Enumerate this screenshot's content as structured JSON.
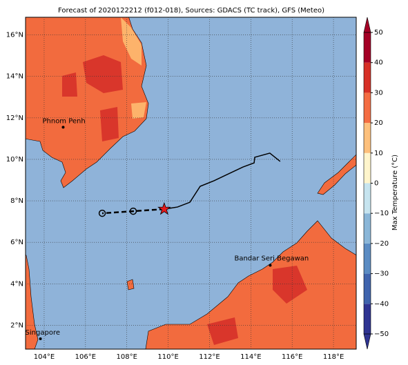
{
  "chart_data": {
    "type": "map",
    "title": "Forecast of 2020122212 (f012-018), Sources: GDACS (TC track), GFS (Meteo)",
    "xlim": [
      103.1,
      119.1
    ],
    "ylim": [
      0.85,
      16.85
    ],
    "xticks": [
      {
        "value": 104,
        "label": "104°E"
      },
      {
        "value": 106,
        "label": "106°E"
      },
      {
        "value": 108,
        "label": "108°E"
      },
      {
        "value": 110,
        "label": "110°E"
      },
      {
        "value": 112,
        "label": "112°E"
      },
      {
        "value": 114,
        "label": "114°E"
      },
      {
        "value": 116,
        "label": "116°E"
      },
      {
        "value": 118,
        "label": "118°E"
      }
    ],
    "yticks": [
      {
        "value": 2,
        "label": "2°N"
      },
      {
        "value": 4,
        "label": "4°N"
      },
      {
        "value": 6,
        "label": "6°N"
      },
      {
        "value": 8,
        "label": "8°N"
      },
      {
        "value": 10,
        "label": "10°N"
      },
      {
        "value": 12,
        "label": "12°N"
      },
      {
        "value": 14,
        "label": "14°N"
      },
      {
        "value": 16,
        "label": "16°N"
      }
    ],
    "grid": true,
    "past_track": {
      "color": "#000000",
      "lon": [
        115.42,
        114.92,
        114.19,
        114.16,
        113.62,
        112.22,
        111.55,
        111.05,
        110.45,
        109.81
      ],
      "lat": [
        9.9,
        10.3,
        10.1,
        9.83,
        9.63,
        8.97,
        8.7,
        7.93,
        7.7,
        7.6
      ]
    },
    "forecast_track": {
      "color": "#000000",
      "lon": [
        109.81,
        108.31,
        106.81
      ],
      "lat": [
        7.6,
        7.5,
        7.4
      ]
    },
    "current_position": {
      "lon": 109.81,
      "lat": 7.6,
      "color": "#e41a1c"
    },
    "cities": [
      {
        "name": "Phnom Penh",
        "lon": 104.92,
        "lat": 11.55
      },
      {
        "name": "Bandar Seri Begawan",
        "lon": 114.94,
        "lat": 4.89
      },
      {
        "name": "Singapore",
        "lon": 103.82,
        "lat": 1.35
      }
    ],
    "colorbar": {
      "label": "Max Temperature (°C)",
      "clim": [
        -50,
        50
      ],
      "bounds": [
        -50,
        -40,
        -30,
        -20,
        -10,
        0,
        10,
        20,
        30,
        40,
        50
      ],
      "colors": [
        "#2f3492",
        "#4064ad",
        "#5b8cc3",
        "#8ab6d8",
        "#c6e4ef",
        "#fff5cc",
        "#fdc07c",
        "#f46d43",
        "#d73027",
        "#a50026"
      ],
      "ticks": [
        {
          "value": -50,
          "label": "−50"
        },
        {
          "value": -40,
          "label": "−40"
        },
        {
          "value": -30,
          "label": "−30"
        },
        {
          "value": -20,
          "label": "−20"
        },
        {
          "value": -10,
          "label": "−10"
        },
        0,
        10,
        20,
        30,
        40,
        50
      ]
    }
  }
}
